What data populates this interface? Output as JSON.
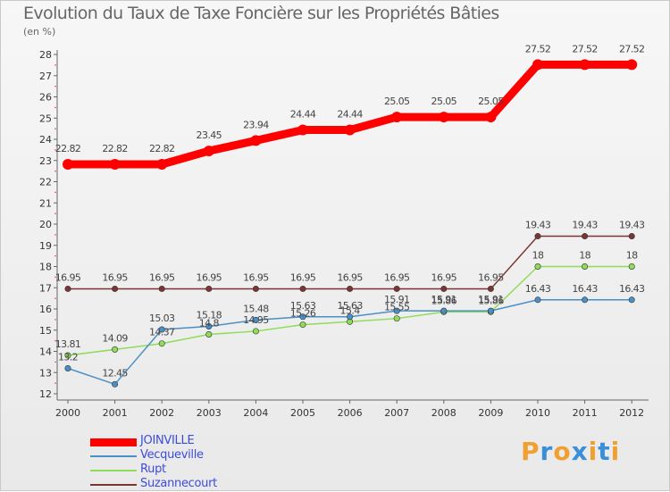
{
  "chart_data": {
    "type": "line",
    "title": "Evolution du Taux de Taxe Foncière sur les Propriétés Bâties",
    "subtitle": "(en %)",
    "x": [
      "2000",
      "2001",
      "2002",
      "2003",
      "2004",
      "2005",
      "2006",
      "2007",
      "2008",
      "2009",
      "2010",
      "2011",
      "2012"
    ],
    "yticks": [
      "12",
      "13",
      "14",
      "15",
      "16",
      "17",
      "18",
      "19",
      "20",
      "21",
      "22",
      "23",
      "24",
      "25",
      "26",
      "27",
      "28"
    ],
    "ylim": [
      12,
      28
    ],
    "grid": false,
    "legend_position": "bottom-left",
    "series": [
      {
        "name": "JOINVILLE",
        "color": "#ff0000",
        "values": [
          22.82,
          22.82,
          22.82,
          23.45,
          23.94,
          24.44,
          24.44,
          25.05,
          25.05,
          25.05,
          27.52,
          27.52,
          27.52
        ],
        "labels": [
          "22.82",
          "22.82",
          "22.82",
          "23.45",
          "23.94",
          "24.44",
          "24.44",
          "25.05",
          "25.05",
          "25.05",
          "27.52",
          "27.52",
          "27.52"
        ]
      },
      {
        "name": "Vecqueville",
        "color": "#4a90c8",
        "values": [
          13.2,
          12.45,
          15.03,
          15.18,
          15.48,
          15.63,
          15.63,
          15.91,
          15.91,
          15.91,
          16.43,
          16.43,
          16.43
        ],
        "labels": [
          "13.2",
          "12.45",
          "15.03",
          "15.18",
          "15.48",
          "15.63",
          "15.63",
          "15.91",
          "15.91",
          "15.91",
          "16.43",
          "16.43",
          "16.43"
        ]
      },
      {
        "name": "Rupt",
        "color": "#8fdc5a",
        "values": [
          13.81,
          14.09,
          14.37,
          14.8,
          14.95,
          15.26,
          15.4,
          15.55,
          15.86,
          15.86,
          18,
          18,
          18
        ],
        "labels": [
          "13.81",
          "14.09",
          "14.37",
          "14.8",
          "14.95",
          "15.26",
          "15.4",
          "15.55",
          "15.86",
          "15.86",
          "18",
          "18",
          "18"
        ]
      },
      {
        "name": "Suzannecourt",
        "color": "#7a3535",
        "values": [
          16.95,
          16.95,
          16.95,
          16.95,
          16.95,
          16.95,
          16.95,
          16.95,
          16.95,
          16.95,
          19.43,
          19.43,
          19.43
        ],
        "labels": [
          "16.95",
          "16.95",
          "16.95",
          "16.95",
          "16.95",
          "16.95",
          "16.95",
          "16.95",
          "16.95",
          "16.95",
          "19.43",
          "19.43",
          "19.43"
        ]
      }
    ]
  },
  "logo": {
    "letters": [
      "P",
      "r",
      "o",
      "x",
      "i",
      "t",
      "i"
    ],
    "colors": [
      "#f0a030",
      "#3a8fd8",
      "#f0a030",
      "#3a8fd8",
      "#f0a030",
      "#3a8fd8",
      "#f0a030"
    ]
  }
}
